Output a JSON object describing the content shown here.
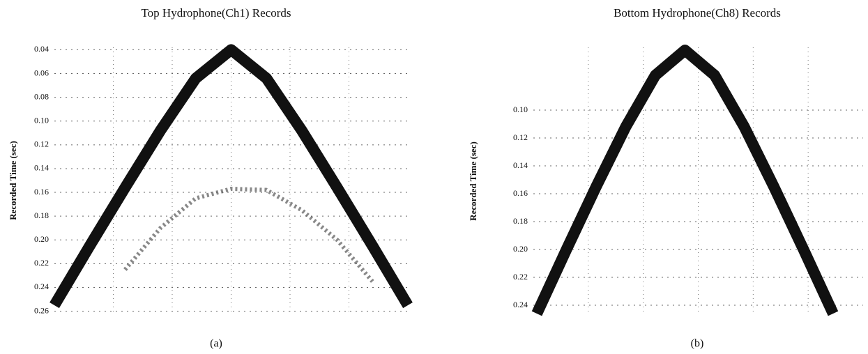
{
  "chart_data": [
    {
      "type": "line",
      "title": "Top Hydrophone(Ch1) Records",
      "y_label": "Recorded Time (sec)",
      "caption": "(a)",
      "y_inverted": true,
      "grid": true,
      "ylim": [
        0.038,
        0.262
      ],
      "yticks": [
        0.04,
        0.06,
        0.08,
        0.1,
        0.12,
        0.14,
        0.16,
        0.18,
        0.2,
        0.22,
        0.24,
        0.26
      ],
      "categories": [
        null,
        null,
        null,
        null,
        null,
        null,
        null,
        null,
        null,
        null,
        null
      ],
      "series": [
        {
          "color": "#111111",
          "values": [
            0.255,
            0.205,
            0.156,
            0.108,
            0.064,
            0.04,
            0.064,
            0.108,
            0.156,
            0.205,
            0.255
          ]
        },
        {
          "color": "#555555",
          "values": [
            null,
            null,
            0.225,
            0.19,
            0.165,
            0.157,
            0.158,
            0.175,
            0.2,
            0.235,
            null
          ]
        }
      ]
    },
    {
      "type": "line",
      "title": "Bottom Hydrophone(Ch8) Records",
      "y_label": "Recorded Time (sec)",
      "caption": "(b)",
      "y_inverted": true,
      "grid": true,
      "ylim": [
        0.055,
        0.247
      ],
      "yticks": [
        0.1,
        0.12,
        0.14,
        0.16,
        0.18,
        0.2,
        0.22,
        0.24
      ],
      "categories": [
        null,
        null,
        null,
        null,
        null,
        null,
        null,
        null,
        null,
        null,
        null
      ],
      "series": [
        {
          "color": "#111111",
          "values": [
            0.246,
            0.2,
            0.155,
            0.112,
            0.075,
            0.057,
            0.075,
            0.112,
            0.155,
            0.2,
            0.246
          ]
        }
      ]
    }
  ]
}
